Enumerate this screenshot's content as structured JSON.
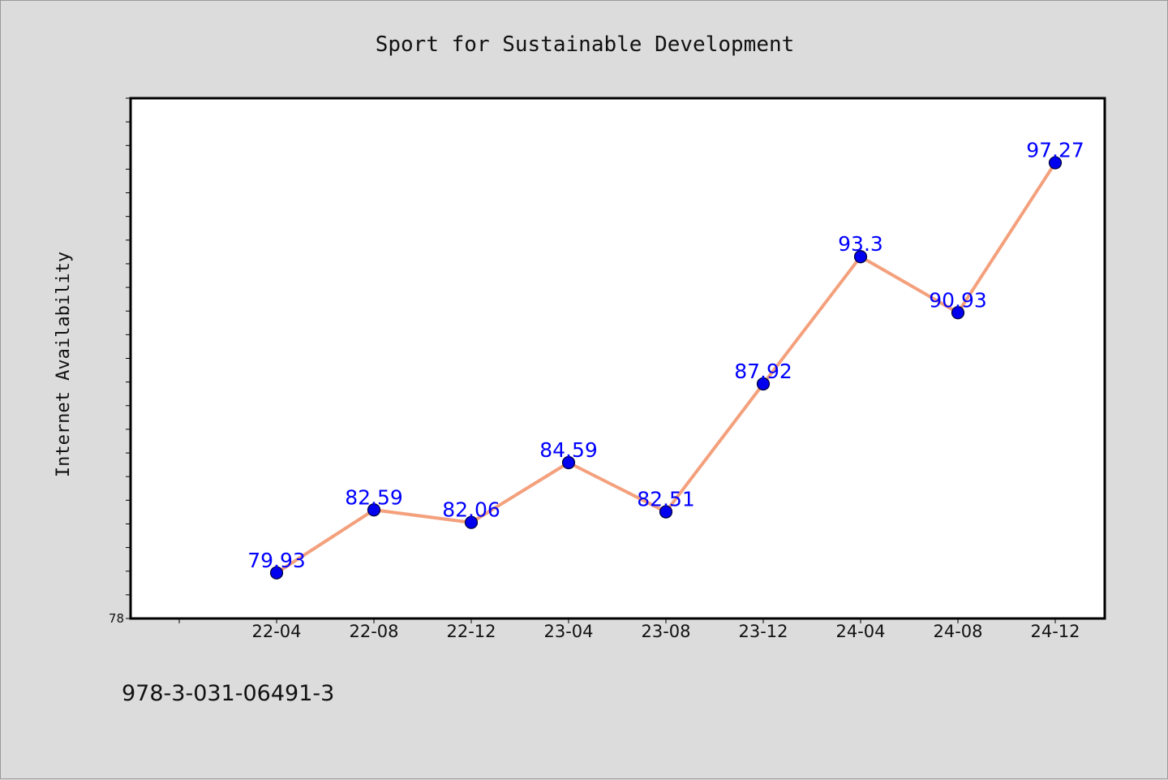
{
  "chart_data": {
    "type": "line",
    "title": "Sport for Sustainable Development",
    "xlabel": "",
    "ylabel": "Internet Availability",
    "categories": [
      "22-04",
      "22-08",
      "22-12",
      "23-04",
      "23-08",
      "23-12",
      "24-04",
      "24-08",
      "24-12"
    ],
    "series": [
      {
        "values": [
          79.93,
          82.59,
          82.06,
          84.59,
          82.51,
          87.92,
          93.3,
          90.93,
          97.27
        ]
      }
    ],
    "ylim": [
      78,
      100
    ],
    "y_tick_labels": [
      "78"
    ],
    "grid": false,
    "colors": {
      "line": "#f4a07c",
      "marker": "#0000ee",
      "data_label": "#0000ff",
      "background": "#dcdcdc",
      "plot_background": "#ffffff"
    }
  },
  "footer": {
    "isbn": "978-3-031-06491-3"
  }
}
